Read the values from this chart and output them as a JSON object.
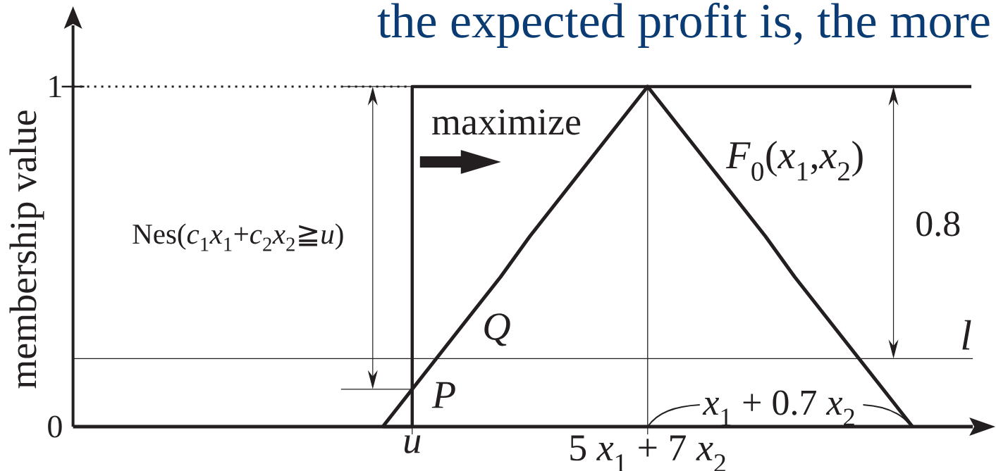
{
  "chart_data": {
    "type": "line",
    "title": "the expected profit is, the more",
    "ylabel": "membership value",
    "categories": [
      null,
      null,
      null,
      null,
      null,
      null,
      null,
      null,
      null,
      null,
      null,
      "u",
      null,
      null,
      null,
      null,
      null,
      null,
      null,
      "5 *x*$_{1}$ + 7 *x*$_{2}$",
      null,
      null,
      null,
      null,
      null,
      null,
      null,
      null,
      null,
      null,
      null
    ],
    "ylim": [
      0,
      1.18
    ],
    "yticks": [
      0,
      1
    ],
    "series": [
      {
        "type": "step",
        "values": [
          null,
          null,
          null,
          null,
          null,
          null,
          null,
          null,
          null,
          null,
          0,
          1,
          1,
          1,
          1,
          1,
          1,
          1,
          1,
          1,
          1,
          1,
          1,
          1,
          1,
          1,
          1,
          1,
          1,
          1,
          1
        ],
        "color": "#231f20"
      },
      {
        "name": "*F*$_{0}$(*x*$_{1}$,*x*$_{2}$)",
        "values": [
          null,
          null,
          null,
          null,
          null,
          null,
          null,
          null,
          null,
          null,
          0,
          0.11,
          0.22,
          0.33,
          0.44,
          0.56,
          0.67,
          0.78,
          0.89,
          1,
          0.89,
          0.78,
          0.67,
          0.56,
          0.44,
          0.33,
          0.22,
          0.11,
          0,
          null,
          null
        ],
        "color": "#231f20"
      },
      {
        "type": "bar",
        "values": [
          null,
          null,
          null,
          null,
          null,
          null,
          null,
          null,
          null,
          null,
          null,
          null,
          null,
          null,
          null,
          null,
          null,
          null,
          null,
          1,
          null,
          null,
          null,
          null,
          null,
          null,
          null,
          null,
          null,
          null,
          null
        ],
        "color": "#231f20"
      }
    ],
    "ref_lines": [
      {
        "axis": "y",
        "value": 0.2,
        "label": "l"
      },
      {
        "axis": "y",
        "value": 1,
        "line_style": "dotted"
      }
    ],
    "annotations": [
      {
        "text": "maximize",
        "x": "u",
        "y": 1
      },
      "Nes(*c*$_{1}$*x*$_{1}$+*c*$_{2}$*x*$_{2}$≧*u*)",
      "0.8",
      {
        "text": "*x*$_{1}$ + 0.7 *x*$_{2}$",
        "x": "5 *x*$_{1}$ + 7 *x*$_{2}$",
        "y": 0
      },
      {
        "text": "P",
        "x": "u",
        "y": 0.11
      },
      {
        "text": "Q",
        "y": 0.2
      }
    ]
  }
}
